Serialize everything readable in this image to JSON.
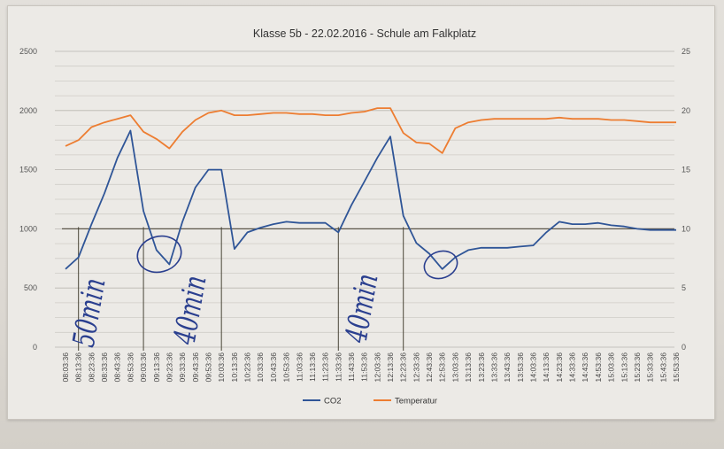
{
  "chart_data": {
    "type": "line",
    "title": "Klasse 5b - 22.02.2016 - Schule am Falkplatz",
    "xlabel": "",
    "ylabel": "",
    "ylim_left": [
      0,
      2500
    ],
    "ylim_right": [
      0,
      25
    ],
    "yticks_left": [
      "0",
      "500",
      "1000",
      "1500",
      "2000",
      "2500"
    ],
    "yticks_right": [
      "0",
      "5",
      "10",
      "15",
      "20",
      "25"
    ],
    "grid": true,
    "legend": "bottom",
    "x": [
      "08:03:36",
      "08:13:36",
      "08:23:36",
      "08:33:36",
      "08:43:36",
      "08:53:36",
      "09:03:36",
      "09:13:36",
      "09:23:36",
      "09:33:36",
      "09:43:36",
      "09:53:36",
      "10:03:36",
      "10:13:36",
      "10:23:36",
      "10:33:36",
      "10:43:36",
      "10:53:36",
      "11:03:36",
      "11:13:36",
      "11:23:36",
      "11:33:36",
      "11:43:36",
      "11:53:36",
      "12:03:36",
      "12:13:36",
      "12:23:36",
      "12:33:36",
      "12:43:36",
      "12:53:36",
      "13:03:36",
      "13:13:36",
      "13:23:36",
      "13:33:36",
      "13:43:36",
      "13:53:36",
      "14:03:36",
      "14:13:36",
      "14:23:36",
      "14:33:36",
      "14:43:36",
      "14:53:36",
      "15:03:36",
      "15:13:36",
      "15:23:36",
      "15:33:36",
      "15:43:36",
      "15:53:36"
    ],
    "series": [
      {
        "name": "CO2",
        "axis": "left",
        "color": "#2f5597",
        "values": [
          660,
          760,
          1040,
          1300,
          1600,
          1830,
          1150,
          820,
          700,
          1060,
          1350,
          1500,
          1500,
          830,
          970,
          1010,
          1040,
          1060,
          1050,
          1050,
          1050,
          970,
          1200,
          1400,
          1600,
          1780,
          1110,
          880,
          790,
          660,
          760,
          820,
          840,
          840,
          840,
          850,
          860,
          970,
          1060,
          1040,
          1040,
          1050,
          1030,
          1020,
          1000,
          990,
          990,
          990
        ]
      },
      {
        "name": "Temperatur",
        "axis": "right",
        "color": "#ed7d31",
        "values": [
          17.0,
          17.5,
          18.6,
          19.0,
          19.3,
          19.6,
          18.2,
          17.6,
          16.8,
          18.2,
          19.2,
          19.8,
          20.0,
          19.6,
          19.6,
          19.7,
          19.8,
          19.8,
          19.7,
          19.7,
          19.6,
          19.6,
          19.8,
          19.9,
          20.2,
          20.2,
          18.1,
          17.3,
          17.2,
          16.4,
          18.5,
          19.0,
          19.2,
          19.3,
          19.3,
          19.3,
          19.3,
          19.3,
          19.4,
          19.3,
          19.3,
          19.3,
          19.2,
          19.2,
          19.1,
          19.0,
          19.0,
          19.0
        ]
      }
    ],
    "annotations": [
      "50min",
      "40min",
      "40min"
    ]
  }
}
